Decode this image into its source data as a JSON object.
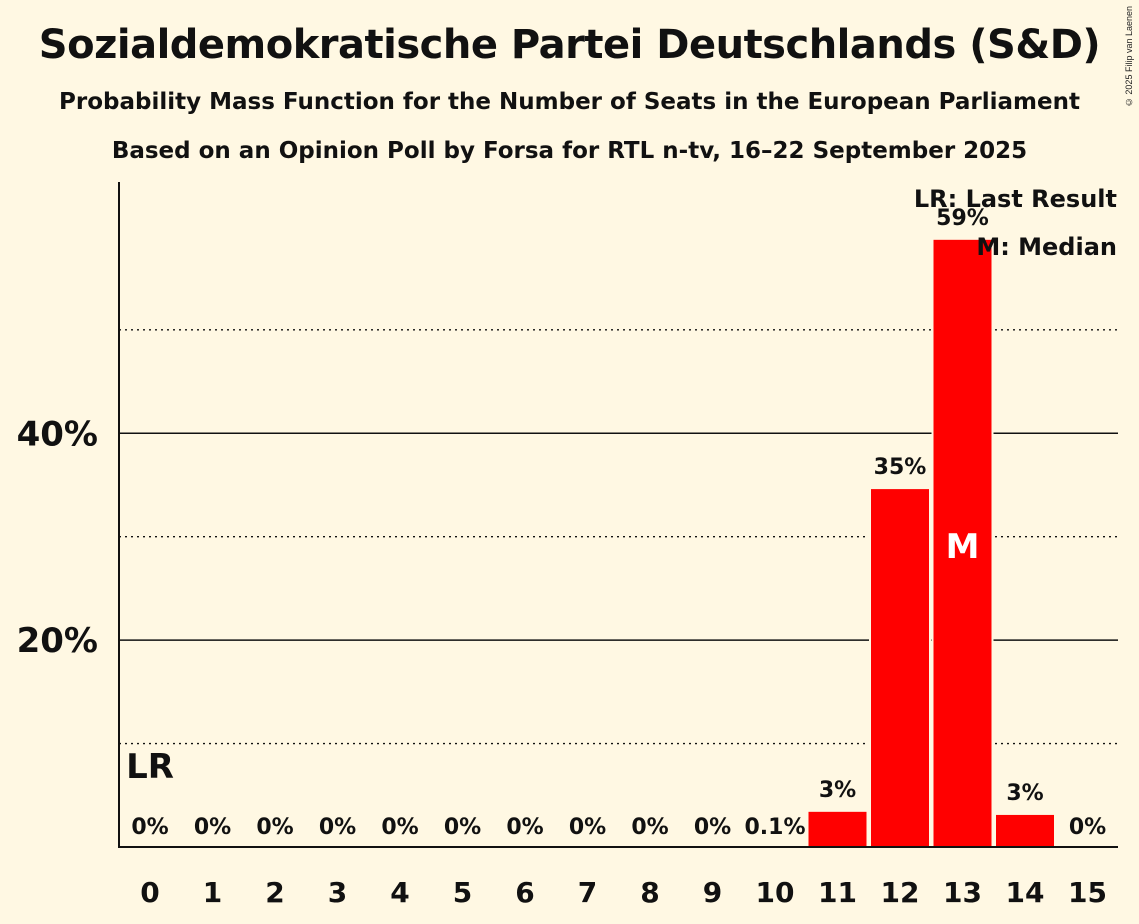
{
  "title": "Sozialdemokratische Partei Deutschlands (S&D)",
  "subtitle": "Probability Mass Function for the Number of Seats in the European Parliament",
  "subtitle2": "Based on an Opinion Poll by Forsa for RTL n-tv, 16–22 September 2025",
  "copyright": "© 2025 Filip van Laenen",
  "legend": {
    "last_result": "LR: Last Result",
    "median": "M: Median"
  },
  "colors": {
    "background": "#FFF8E3",
    "bar": "#FF0000",
    "text": "#111111"
  },
  "chart_data": {
    "type": "bar",
    "categories": [
      "0",
      "1",
      "2",
      "3",
      "4",
      "5",
      "6",
      "7",
      "8",
      "9",
      "10",
      "11",
      "12",
      "13",
      "14",
      "15"
    ],
    "values": [
      0,
      0,
      0,
      0,
      0,
      0,
      0,
      0,
      0,
      0,
      0.1,
      3.4,
      34.6,
      58.7,
      3.1,
      0
    ],
    "data_labels": [
      "0%",
      "0%",
      "0%",
      "0%",
      "0%",
      "0%",
      "0%",
      "0%",
      "0%",
      "0%",
      "0.1%",
      "3%",
      "35%",
      "59%",
      "3%",
      "0%"
    ],
    "ylim": [
      0,
      64
    ],
    "y_ticks": [
      {
        "value": 20,
        "label": "20%"
      },
      {
        "value": 40,
        "label": "40%"
      }
    ],
    "minor_gridlines": [
      10,
      30,
      50
    ],
    "last_result": {
      "category": "0",
      "label": "LR"
    },
    "median": {
      "category": "13",
      "label": "M"
    },
    "legend_position": "top-right",
    "xlabel": "",
    "ylabel": ""
  }
}
